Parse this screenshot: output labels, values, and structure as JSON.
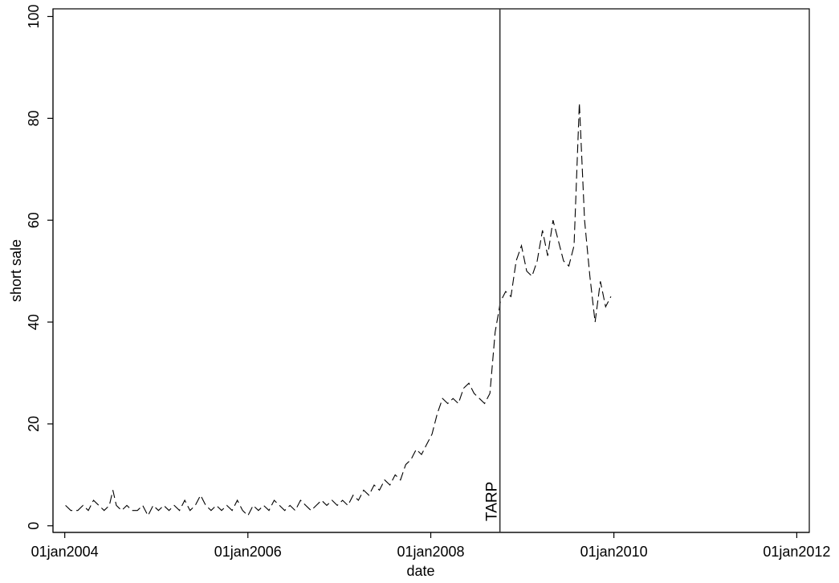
{
  "chart_data": {
    "type": "line",
    "xlabel": "date",
    "ylabel": "short sale",
    "x_tick_labels": [
      "01jan2004",
      "01jan2006",
      "01jan2008",
      "01jan2010",
      "01jan2012"
    ],
    "x_ticks": [
      "2004-01-01",
      "2006-01-01",
      "2008-01-01",
      "2010-01-01",
      "2012-01-01"
    ],
    "y_ticks": [
      0,
      20,
      40,
      60,
      80,
      100
    ],
    "xlim": [
      "2003-11-15",
      "2012-02-20"
    ],
    "ylim": [
      -1.3,
      101.5
    ],
    "grid": false,
    "reference_line": {
      "x": "2008-10-03",
      "label": "TARP"
    },
    "series": [
      {
        "line_style": "dashed",
        "points": [
          [
            "2004-01-04",
            4
          ],
          [
            "2004-01-25",
            3
          ],
          [
            "2004-02-22",
            3
          ],
          [
            "2004-03-14",
            4
          ],
          [
            "2004-04-04",
            3
          ],
          [
            "2004-04-25",
            5
          ],
          [
            "2004-05-16",
            4
          ],
          [
            "2004-06-06",
            3
          ],
          [
            "2004-06-27",
            4
          ],
          [
            "2004-07-11",
            7
          ],
          [
            "2004-07-25",
            4
          ],
          [
            "2004-08-15",
            3
          ],
          [
            "2004-09-05",
            4
          ],
          [
            "2004-09-26",
            3
          ],
          [
            "2004-10-17",
            3
          ],
          [
            "2004-11-07",
            4
          ],
          [
            "2004-11-28",
            2
          ],
          [
            "2004-12-19",
            4
          ],
          [
            "2005-01-09",
            3
          ],
          [
            "2005-01-30",
            4
          ],
          [
            "2005-02-20",
            3
          ],
          [
            "2005-03-13",
            4
          ],
          [
            "2005-04-03",
            3
          ],
          [
            "2005-04-24",
            5
          ],
          [
            "2005-05-15",
            3
          ],
          [
            "2005-06-05",
            4
          ],
          [
            "2005-06-26",
            6
          ],
          [
            "2005-07-17",
            4
          ],
          [
            "2005-08-07",
            3
          ],
          [
            "2005-08-28",
            4
          ],
          [
            "2005-09-18",
            3
          ],
          [
            "2005-10-09",
            4
          ],
          [
            "2005-10-30",
            3
          ],
          [
            "2005-11-20",
            5
          ],
          [
            "2005-12-11",
            3
          ],
          [
            "2006-01-01",
            2
          ],
          [
            "2006-01-22",
            4
          ],
          [
            "2006-02-12",
            3
          ],
          [
            "2006-03-05",
            4
          ],
          [
            "2006-03-26",
            3
          ],
          [
            "2006-04-16",
            5
          ],
          [
            "2006-05-07",
            4
          ],
          [
            "2006-05-28",
            3
          ],
          [
            "2006-06-18",
            4
          ],
          [
            "2006-07-09",
            3
          ],
          [
            "2006-07-30",
            5
          ],
          [
            "2006-08-20",
            4
          ],
          [
            "2006-09-10",
            3
          ],
          [
            "2006-10-01",
            4
          ],
          [
            "2006-10-22",
            5
          ],
          [
            "2006-11-12",
            4
          ],
          [
            "2006-12-03",
            5
          ],
          [
            "2006-12-24",
            4
          ],
          [
            "2007-01-14",
            5
          ],
          [
            "2007-02-04",
            4
          ],
          [
            "2007-02-25",
            6
          ],
          [
            "2007-03-18",
            5
          ],
          [
            "2007-04-08",
            7
          ],
          [
            "2007-04-29",
            6
          ],
          [
            "2007-05-20",
            8
          ],
          [
            "2007-06-10",
            7
          ],
          [
            "2007-07-01",
            9
          ],
          [
            "2007-07-22",
            8
          ],
          [
            "2007-08-12",
            10
          ],
          [
            "2007-09-02",
            9
          ],
          [
            "2007-09-23",
            12
          ],
          [
            "2007-10-14",
            13
          ],
          [
            "2007-11-04",
            15
          ],
          [
            "2007-11-25",
            14
          ],
          [
            "2007-12-16",
            16
          ],
          [
            "2008-01-06",
            18
          ],
          [
            "2008-01-27",
            22
          ],
          [
            "2008-02-17",
            25
          ],
          [
            "2008-03-09",
            24
          ],
          [
            "2008-03-30",
            25
          ],
          [
            "2008-04-20",
            24
          ],
          [
            "2008-05-11",
            27
          ],
          [
            "2008-06-01",
            28
          ],
          [
            "2008-06-22",
            26
          ],
          [
            "2008-07-13",
            25
          ],
          [
            "2008-08-03",
            24
          ],
          [
            "2008-08-24",
            26
          ],
          [
            "2008-09-14",
            38
          ],
          [
            "2008-10-05",
            44
          ],
          [
            "2008-10-26",
            46
          ],
          [
            "2008-11-16",
            45
          ],
          [
            "2008-12-07",
            52
          ],
          [
            "2008-12-28",
            55
          ],
          [
            "2009-01-18",
            50
          ],
          [
            "2009-02-08",
            49
          ],
          [
            "2009-03-01",
            52
          ],
          [
            "2009-03-22",
            58
          ],
          [
            "2009-04-12",
            53
          ],
          [
            "2009-05-03",
            60
          ],
          [
            "2009-05-24",
            56
          ],
          [
            "2009-06-14",
            52
          ],
          [
            "2009-07-05",
            51
          ],
          [
            "2009-07-26",
            55
          ],
          [
            "2009-08-16",
            83
          ],
          [
            "2009-09-06",
            60
          ],
          [
            "2009-09-27",
            49
          ],
          [
            "2009-10-18",
            40
          ],
          [
            "2009-11-08",
            48
          ],
          [
            "2009-11-29",
            43
          ],
          [
            "2009-12-20",
            45
          ]
        ]
      }
    ]
  }
}
